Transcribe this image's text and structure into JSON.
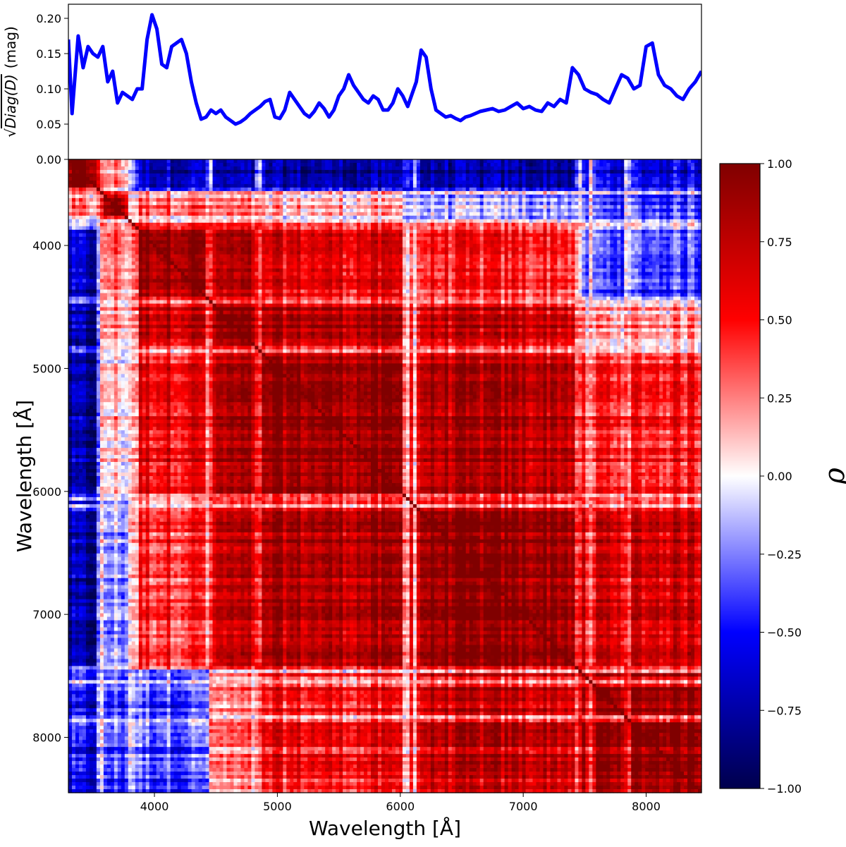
{
  "chart_data": [
    {
      "type": "line",
      "ylabel_radicand": "Diag(D)",
      "ylabel_unit": "(mag)",
      "xlim": [
        3300,
        8450
      ],
      "ylim": [
        0.0,
        0.22
      ],
      "yticks": [
        "0.00",
        "0.05",
        "0.10",
        "0.15",
        "0.20"
      ],
      "line_color": "#0000ff",
      "series": [
        {
          "x": [
            3300,
            3330,
            3380,
            3420,
            3460,
            3500,
            3540,
            3580,
            3620,
            3660,
            3700,
            3740,
            3780,
            3820,
            3860,
            3900,
            3940,
            3980,
            4020,
            4060,
            4100,
            4140,
            4180,
            4220,
            4260,
            4300,
            4340,
            4380,
            4420,
            4460,
            4500,
            4540,
            4580,
            4620,
            4660,
            4700,
            4740,
            4780,
            4820,
            4860,
            4900,
            4940,
            4980,
            5020,
            5060,
            5100,
            5140,
            5180,
            5220,
            5260,
            5300,
            5340,
            5380,
            5420,
            5460,
            5500,
            5540,
            5580,
            5620,
            5660,
            5700,
            5740,
            5780,
            5820,
            5860,
            5900,
            5940,
            5980,
            6020,
            6060,
            6090,
            6130,
            6170,
            6210,
            6250,
            6290,
            6330,
            6370,
            6410,
            6450,
            6490,
            6530,
            6570,
            6610,
            6650,
            6700,
            6750,
            6800,
            6850,
            6900,
            6950,
            7000,
            7050,
            7100,
            7150,
            7200,
            7250,
            7300,
            7350,
            7400,
            7450,
            7500,
            7550,
            7600,
            7650,
            7700,
            7750,
            7800,
            7850,
            7900,
            7950,
            8000,
            8050,
            8100,
            8150,
            8200,
            8250,
            8300,
            8350,
            8400,
            8450
          ],
          "y": [
            0.17,
            0.065,
            0.175,
            0.13,
            0.16,
            0.15,
            0.145,
            0.16,
            0.11,
            0.125,
            0.08,
            0.095,
            0.09,
            0.085,
            0.1,
            0.1,
            0.17,
            0.205,
            0.185,
            0.135,
            0.13,
            0.16,
            0.165,
            0.17,
            0.15,
            0.11,
            0.08,
            0.057,
            0.06,
            0.07,
            0.065,
            0.07,
            0.06,
            0.055,
            0.05,
            0.053,
            0.058,
            0.065,
            0.07,
            0.075,
            0.082,
            0.085,
            0.06,
            0.058,
            0.07,
            0.095,
            0.085,
            0.075,
            0.065,
            0.06,
            0.068,
            0.08,
            0.072,
            0.06,
            0.07,
            0.09,
            0.1,
            0.12,
            0.105,
            0.095,
            0.085,
            0.08,
            0.09,
            0.085,
            0.07,
            0.07,
            0.08,
            0.1,
            0.09,
            0.075,
            0.09,
            0.11,
            0.155,
            0.145,
            0.1,
            0.07,
            0.065,
            0.06,
            0.062,
            0.058,
            0.055,
            0.06,
            0.062,
            0.065,
            0.068,
            0.07,
            0.072,
            0.068,
            0.07,
            0.075,
            0.08,
            0.072,
            0.075,
            0.07,
            0.068,
            0.08,
            0.075,
            0.085,
            0.08,
            0.13,
            0.12,
            0.1,
            0.095,
            0.092,
            0.085,
            0.08,
            0.1,
            0.12,
            0.115,
            0.1,
            0.105,
            0.16,
            0.165,
            0.12,
            0.105,
            0.1,
            0.09,
            0.085,
            0.1,
            0.11,
            0.125
          ]
        }
      ]
    },
    {
      "type": "heatmap",
      "title": "",
      "xlabel": "Wavelength [Å]",
      "ylabel": "Wavelength [Å]",
      "x_range": [
        3300,
        8450
      ],
      "y_range": [
        3300,
        8450
      ],
      "xticks": [
        4000,
        5000,
        6000,
        7000,
        8000
      ],
      "yticks": [
        4000,
        5000,
        6000,
        7000,
        8000
      ],
      "grid_size": 180,
      "block_edges": [
        3300,
        3560,
        3800,
        4450,
        4850,
        6050,
        7450,
        8450
      ],
      "block_correlation": [
        [
          0.9,
          0.2,
          -0.7,
          -0.8,
          -0.8,
          -0.8,
          -0.6
        ],
        [
          0.2,
          0.9,
          0.3,
          0.2,
          0.1,
          -0.2,
          -0.4
        ],
        [
          -0.7,
          0.3,
          0.9,
          0.75,
          0.6,
          0.45,
          -0.35
        ],
        [
          -0.8,
          0.2,
          0.75,
          0.9,
          0.8,
          0.7,
          0.2
        ],
        [
          -0.8,
          0.1,
          0.6,
          0.8,
          0.9,
          0.8,
          0.5
        ],
        [
          -0.8,
          -0.2,
          0.45,
          0.7,
          0.8,
          0.9,
          0.7
        ],
        [
          -0.6,
          -0.4,
          -0.35,
          0.2,
          0.5,
          0.7,
          0.9
        ]
      ],
      "stripes": [
        3560,
        3800,
        3840,
        4450,
        4850,
        6050,
        6120,
        7450,
        7550,
        7850
      ]
    },
    {
      "type": "colorbar",
      "label": "ρ",
      "colormap": "seismic",
      "range": [
        -1.0,
        1.0
      ],
      "ticks": [
        "1.00",
        "0.75",
        "0.50",
        "0.25",
        "0.00",
        "−0.25",
        "−0.50",
        "−0.75",
        "−1.00"
      ]
    }
  ]
}
